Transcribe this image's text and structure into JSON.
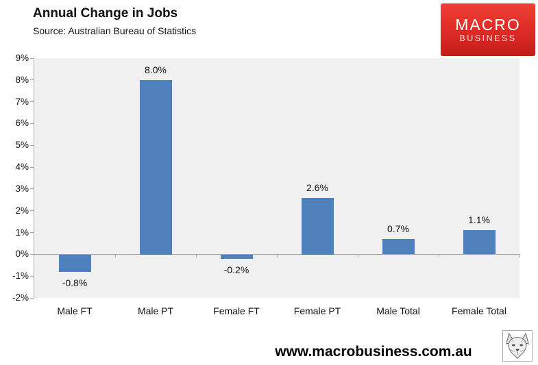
{
  "header": {
    "title": "Annual Change in Jobs",
    "subtitle": "Source: Australian Bureau of Statistics",
    "logo": {
      "line1": "MACRO",
      "line2": "BUSINESS",
      "background_color": "#DD2A24",
      "text_color": "#FFFFFF"
    }
  },
  "chart_data": {
    "type": "bar",
    "title": "Annual Change in Jobs",
    "subtitle": "Source: Australian Bureau of Statistics",
    "categories": [
      "Male FT",
      "Male PT",
      "Female FT",
      "Female PT",
      "Male Total",
      "Female Total"
    ],
    "values": [
      -0.8,
      8.0,
      -0.2,
      2.6,
      0.7,
      1.1
    ],
    "value_labels": [
      "-0.8%",
      "8.0%",
      "-0.2%",
      "2.6%",
      "0.7%",
      "1.1%"
    ],
    "xlabel": "",
    "ylabel": "",
    "ylim": [
      -2,
      9
    ],
    "ytick_step": 1,
    "ytick_labels": [
      "9%",
      "8%",
      "7%",
      "6%",
      "5%",
      "4%",
      "3%",
      "2%",
      "1%",
      "0%",
      "-1%",
      "-2%"
    ],
    "grid": false,
    "legend": false,
    "bar_color": "#4F81BD",
    "plot_background": "#F0F0F0",
    "axis_color": "#A6A6A6"
  },
  "footer": {
    "url": "www.macrobusiness.com.au",
    "logo_icon": "wolf-logo"
  }
}
